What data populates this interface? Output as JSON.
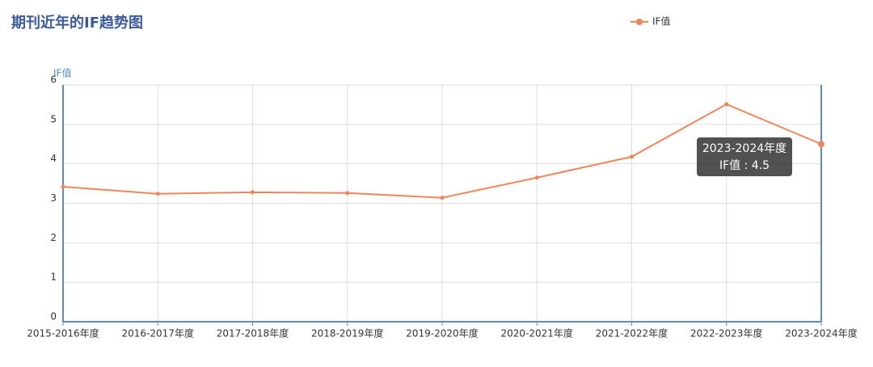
{
  "chart_data": {
    "type": "line",
    "title": "期刊近年的IF趋势图",
    "ylabel": "IF值",
    "categories": [
      "2015-2016年度",
      "2016-2017年度",
      "2017-2018年度",
      "2018-2019年度",
      "2019-2020年度",
      "2020-2021年度",
      "2021-2022年度",
      "2022-2023年度",
      "2023-2024年度"
    ],
    "series": [
      {
        "name": "IF值",
        "color": "#f0855a",
        "values": [
          3.42,
          3.24,
          3.28,
          3.26,
          3.14,
          3.65,
          4.18,
          5.51,
          4.5
        ]
      }
    ],
    "ylim": [
      0,
      6
    ],
    "yticks": [
      0,
      1,
      2,
      3,
      4,
      5,
      6
    ],
    "grid": true,
    "legend": "top",
    "tooltip": {
      "lines": [
        "2023-2024年度",
        "IF值 : 4.5"
      ],
      "index": 8
    }
  }
}
